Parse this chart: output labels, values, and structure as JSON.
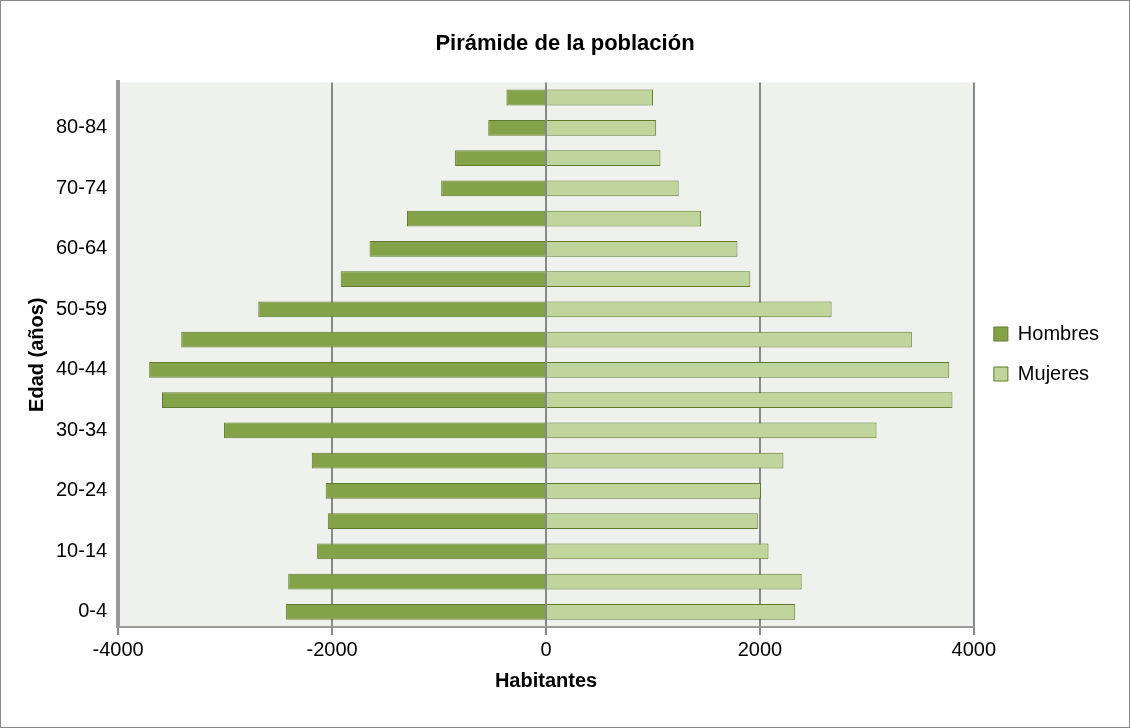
{
  "chart_data": {
    "type": "bar",
    "orientation": "horizontal",
    "title": "Pirámide de la población",
    "xlabel": "Habitantes",
    "ylabel": "Edad (años)",
    "categories": [
      null,
      "80-84",
      null,
      "70-74",
      null,
      "60-64",
      null,
      "50-59",
      null,
      "40-44",
      null,
      "30-34",
      null,
      "20-24",
      null,
      "10-14",
      null,
      "0-4"
    ],
    "series": [
      {
        "name": "Hombres",
        "color": "#84a349",
        "values": [
          -370,
          -540,
          -850,
          -980,
          -1300,
          -1650,
          -1920,
          -2690,
          -3410,
          -3710,
          -3590,
          -3010,
          -2190,
          -2060,
          -2040,
          -2140,
          -2410,
          -2430
        ]
      },
      {
        "name": "Mujeres",
        "color": "#c0d59b",
        "values": [
          1000,
          1030,
          1070,
          1240,
          1450,
          1790,
          1910,
          2670,
          3420,
          3770,
          3800,
          3090,
          2220,
          2010,
          1980,
          2080,
          2390,
          2330
        ]
      }
    ],
    "stacked": true,
    "xlim": [
      -4000,
      4000
    ],
    "xticks": [
      -4000,
      -2000,
      0,
      2000,
      4000
    ],
    "grid": "x",
    "legend": "right"
  }
}
